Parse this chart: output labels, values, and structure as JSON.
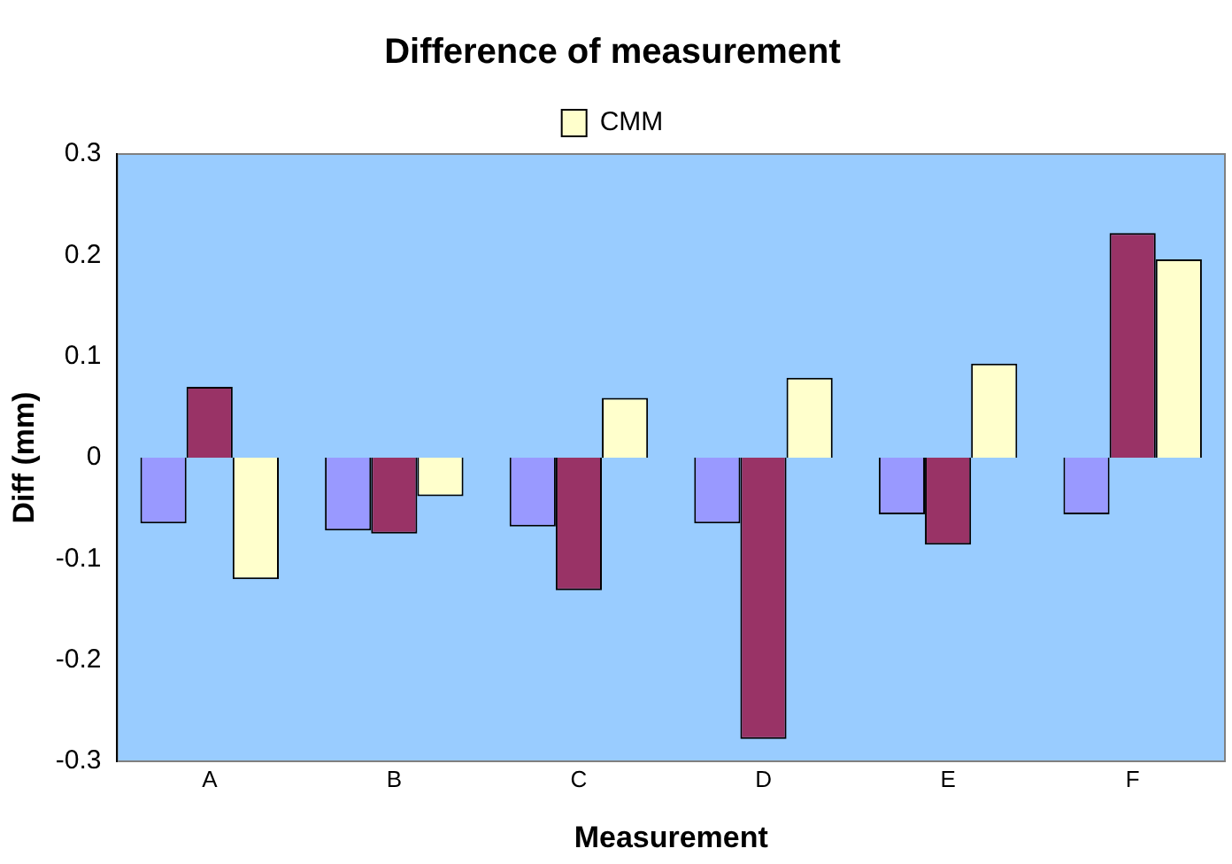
{
  "chart_data": {
    "type": "bar",
    "title": "Difference of measurement",
    "xlabel": "Measurement",
    "ylabel": "Diff (mm)",
    "categories": [
      "A",
      "B",
      "C",
      "D",
      "E",
      "F"
    ],
    "series": [
      {
        "color": "#9999ff",
        "values": [
          -0.065,
          -0.072,
          -0.068,
          -0.065,
          -0.056,
          -0.056
        ]
      },
      {
        "color": "#993366",
        "values": [
          0.07,
          -0.075,
          -0.131,
          -0.278,
          -0.086,
          0.222
        ]
      },
      {
        "name": "CMM",
        "color": "#ffffcc",
        "values": [
          -0.12,
          -0.038,
          0.059,
          0.079,
          0.093,
          0.196
        ]
      }
    ],
    "ylim": [
      -0.3,
      0.3
    ],
    "yticks": [
      {
        "value": -0.3,
        "label": "-0.3"
      },
      {
        "value": -0.2,
        "label": "-0.2"
      },
      {
        "value": -0.1,
        "label": "-0.1"
      },
      0,
      0.1,
      0.2,
      0.3
    ],
    "grid": false,
    "legend": "top"
  }
}
